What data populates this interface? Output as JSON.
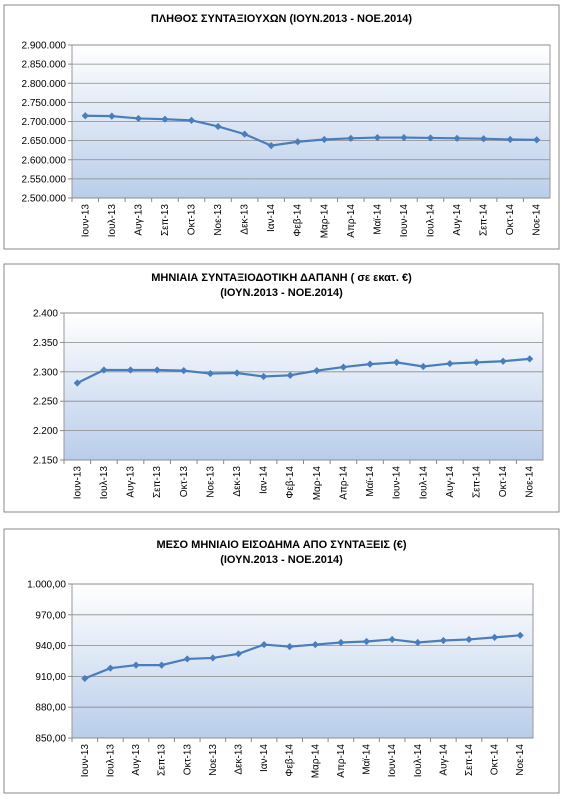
{
  "chart_data": [
    {
      "type": "line",
      "title": "ΠΛΗΘΟΣ ΣΥΝΤΑΞΙΟΥΧΩΝ (ΙΟΥΝ.2013 - ΝΟΕ.2014)",
      "categories": [
        "Ιουν-13",
        "Ιουλ-13",
        "Αυγ-13",
        "Σεπ-13",
        "Οκτ-13",
        "Νοε-13",
        "Δεκ-13",
        "Ιαν-14",
        "Φεβ-14",
        "Μαρ-14",
        "Απρ-14",
        "Μαϊ-14",
        "Ιουν-14",
        "Ιουλ-14",
        "Αυγ-14",
        "Σεπ-14",
        "Οκτ-14",
        "Νοε-14"
      ],
      "values": [
        2715000,
        2714000,
        2708000,
        2706000,
        2703000,
        2687000,
        2667000,
        2637000,
        2647000,
        2653000,
        2656000,
        2658000,
        2658000,
        2657000,
        2656000,
        2655000,
        2653000,
        2652000
      ],
      "color": "#4a7ebb",
      "grid": true,
      "ylim": [
        2500000,
        2900000
      ],
      "yticks": [
        {
          "value": 2500000,
          "label": "2.500.000"
        },
        {
          "value": 2550000,
          "label": "2.550.000"
        },
        {
          "value": 2600000,
          "label": "2.600.000"
        },
        {
          "value": 2650000,
          "label": "2.650.000"
        },
        {
          "value": 2700000,
          "label": "2.700.000"
        },
        {
          "value": 2750000,
          "label": "2.750.000"
        },
        {
          "value": 2800000,
          "label": "2.800.000"
        },
        {
          "value": 2850000,
          "label": "2.850.000"
        },
        {
          "value": 2900000,
          "label": "2.900.000"
        }
      ]
    },
    {
      "type": "line",
      "title": "ΜΗΝΙΑΙΑ ΣΥΝΤΑΞΙΟΔΟΤΙΚΗ ΔΑΠΑΝΗ ( σε εκατ. €)",
      "subtitle": "(ΙΟΥΝ.2013 - ΝΟΕ.2014)",
      "categories": [
        "Ιουν-13",
        "Ιουλ-13",
        "Αυγ-13",
        "Σεπ-13",
        "Οκτ-13",
        "Νοε-13",
        "Δεκ-13",
        "Ιαν-14",
        "Φεβ-14",
        "Μαρ-14",
        "Απρ-14",
        "Μαϊ-14",
        "Ιουν-14",
        "Ιουλ-14",
        "Αυγ-14",
        "Σεπ-14",
        "Οκτ-14",
        "Νοε-14"
      ],
      "values": [
        2281,
        2303,
        2303,
        2303,
        2302,
        2297,
        2298,
        2292,
        2294,
        2302,
        2308,
        2313,
        2316,
        2309,
        2314,
        2316,
        2318,
        2322
      ],
      "color": "#4a7ebb",
      "grid": true,
      "ylim": [
        2150,
        2400
      ],
      "yticks": [
        {
          "value": 2150,
          "label": "2.150"
        },
        {
          "value": 2200,
          "label": "2.200"
        },
        {
          "value": 2250,
          "label": "2.250"
        },
        {
          "value": 2300,
          "label": "2.300"
        },
        {
          "value": 2350,
          "label": "2.350"
        },
        {
          "value": 2400,
          "label": "2.400"
        }
      ]
    },
    {
      "type": "line",
      "title": "ΜΕΣΟ ΜΗΝΙΑΙΟ ΕΙΣΟΔΗΜΑ ΑΠΟ ΣΥΝΤΑΞΕΙΣ (€)",
      "subtitle": "(ΙΟΥΝ.2013 - ΝΟΕ.2014)",
      "categories": [
        "Ιουν-13",
        "Ιουλ-13",
        "Αυγ-13",
        "Σεπ-13",
        "Οκτ-13",
        "Νοε-13",
        "Δεκ-13",
        "Ιαν-14",
        "Φεβ-14",
        "Μαρ-14",
        "Απρ-14",
        "Μαϊ-14",
        "Ιουν-14",
        "Ιουλ-14",
        "Αυγ-14",
        "Σεπ-14",
        "Οκτ-14",
        "Νοε-14"
      ],
      "values": [
        908,
        918,
        921,
        921,
        927,
        928,
        932,
        941,
        939,
        941,
        943,
        944,
        946,
        943,
        945,
        946,
        948,
        950
      ],
      "color": "#4a7ebb",
      "grid": true,
      "ylim": [
        850,
        1000
      ],
      "yticks": [
        {
          "value": 850,
          "label": "850,00"
        },
        {
          "value": 880,
          "label": "880,00"
        },
        {
          "value": 910,
          "label": "910,00"
        },
        {
          "value": 940,
          "label": "940,00"
        },
        {
          "value": 970,
          "label": "970,00"
        },
        {
          "value": 1000,
          "label": "1.000,00"
        }
      ]
    }
  ]
}
